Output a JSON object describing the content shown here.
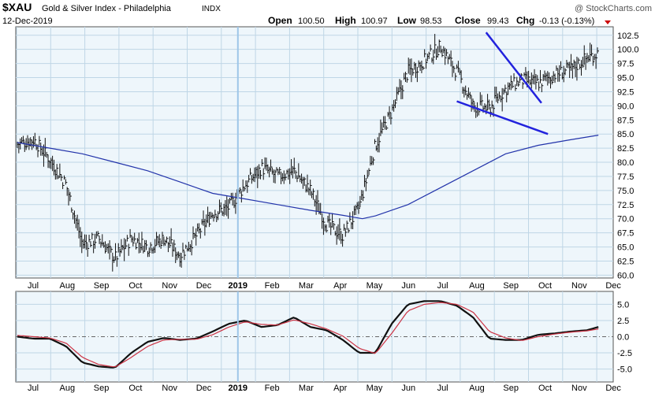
{
  "header": {
    "ticker": "$XAU",
    "name": "Gold & Silver Index - Philadelphia",
    "exchange": "INDX",
    "date": "12-Dec-2019",
    "open_label": "Open",
    "open": "100.50",
    "high_label": "High",
    "high": "100.97",
    "low_label": "Low",
    "low": "98.53",
    "close_label": "Close",
    "close": "99.43",
    "chg_label": "Chg",
    "chg": "-0.13 (-0.13%)",
    "watermark": "@ StockCharts.com"
  },
  "colors": {
    "panel_bg": "#eef6fb",
    "grid": "#bfd6e6",
    "price": "#111111",
    "ma": "#2233aa",
    "trendline": "#2222dd",
    "macd": "#111111",
    "signal": "#cc3344",
    "year_marker": "#9ec6e8",
    "down_arrow": "#cc0000"
  },
  "chart_data": [
    {
      "type": "line",
      "panel": "price",
      "title": "$XAU Gold & Silver Index - Philadelphia INDX",
      "xlabel": "",
      "ylabel": "",
      "x_ticks": [
        "Jul",
        "Aug",
        "Sep",
        "Oct",
        "Nov",
        "Dec",
        "2019",
        "Feb",
        "Mar",
        "Apr",
        "May",
        "Jun",
        "Jul",
        "Aug",
        "Sep",
        "Oct",
        "Nov",
        "Dec"
      ],
      "y_ticks": [
        60.0,
        62.5,
        65.0,
        67.5,
        70.0,
        72.5,
        75.0,
        77.5,
        80.0,
        82.5,
        85.0,
        87.5,
        90.0,
        92.5,
        95.0,
        97.5,
        100.0,
        102.5
      ],
      "ylim": [
        59.5,
        104.0
      ],
      "grid": true,
      "x_range_months": [
        0,
        17.9
      ],
      "series": [
        {
          "style": "ohlc",
          "x": [
            0,
            0.5,
            1,
            1.5,
            2,
            2.5,
            3,
            3.5,
            4,
            4.5,
            5,
            5.5,
            6,
            6.5,
            7,
            7.5,
            8,
            8.5,
            9,
            9.5,
            10,
            10.5,
            11,
            11.5,
            12,
            12.5,
            13,
            13.5,
            14,
            14.5,
            15,
            15.5,
            16,
            16.5,
            17,
            17.5,
            17.85
          ],
          "values": [
            83.2,
            84.0,
            80.5,
            76.0,
            65.5,
            66.5,
            63.0,
            66.5,
            65.0,
            66.5,
            63.5,
            67.0,
            71.0,
            72.0,
            76.0,
            79.0,
            77.5,
            78.5,
            75.0,
            69.0,
            67.0,
            72.0,
            83.0,
            89.0,
            96.0,
            98.0,
            100.5,
            96.0,
            90.0,
            89.5,
            93.0,
            94.5,
            94.0,
            95.5,
            96.5,
            98.5,
            99.43
          ]
        },
        {
          "name": "",
          "x": [
            0,
            1,
            2,
            3,
            4,
            5,
            6,
            7,
            8,
            9,
            10,
            10.6,
            11,
            12,
            13,
            14,
            15,
            16,
            17,
            17.85
          ],
          "values": [
            83.5,
            82.5,
            81.5,
            80.0,
            78.5,
            76.5,
            74.5,
            73.5,
            72.5,
            71.5,
            70.6,
            70.0,
            70.5,
            72.5,
            75.5,
            78.5,
            81.5,
            83.0,
            84.0,
            84.8
          ]
        }
      ],
      "annotations": [
        {
          "type": "trendline",
          "x": [
            14.4,
            16.1
          ],
          "values": [
            103.0,
            90.5
          ]
        },
        {
          "type": "trendline",
          "x": [
            13.5,
            16.3
          ],
          "values": [
            90.8,
            85.0
          ]
        }
      ]
    },
    {
      "type": "line",
      "panel": "macd",
      "x_ticks": [
        "Jul",
        "Aug",
        "Sep",
        "Oct",
        "Nov",
        "Dec",
        "2019",
        "Feb",
        "Mar",
        "Apr",
        "May",
        "Jun",
        "Jul",
        "Aug",
        "Sep",
        "Oct",
        "Nov",
        "Dec"
      ],
      "y_ticks": [
        -5.0,
        -2.5,
        0.0,
        2.5,
        5.0
      ],
      "ylim": [
        -7.0,
        7.0
      ],
      "grid": true,
      "series": [
        {
          "x": [
            0,
            0.5,
            1,
            1.5,
            2,
            2.5,
            3,
            3.5,
            4,
            4.5,
            5,
            5.5,
            6,
            6.5,
            7,
            7.5,
            8,
            8.5,
            9,
            9.5,
            10,
            10.5,
            11,
            11.5,
            12,
            12.5,
            13,
            13.5,
            14,
            14.5,
            15,
            15.5,
            16,
            16.5,
            17,
            17.5,
            17.85
          ],
          "values": [
            0.0,
            -0.3,
            -0.3,
            -1.5,
            -4.0,
            -4.6,
            -4.8,
            -2.5,
            -0.8,
            -0.2,
            -0.5,
            -0.3,
            0.8,
            2.0,
            2.5,
            1.5,
            1.8,
            3.0,
            1.5,
            1.0,
            -0.5,
            -2.5,
            -2.5,
            2.0,
            5.0,
            5.5,
            5.5,
            4.8,
            3.0,
            -0.3,
            -0.5,
            -0.5,
            0.3,
            0.5,
            0.8,
            1.0,
            1.5
          ]
        },
        {
          "x": [
            0,
            0.5,
            1,
            1.5,
            2,
            2.5,
            3,
            3.5,
            4,
            4.5,
            5,
            5.5,
            6,
            6.5,
            7,
            7.5,
            8,
            8.5,
            9,
            9.5,
            10,
            10.5,
            11,
            11.5,
            12,
            12.5,
            13,
            13.5,
            14,
            14.5,
            15,
            15.5,
            16,
            16.5,
            17,
            17.5,
            17.85
          ],
          "values": [
            0.2,
            0.0,
            -0.2,
            -1.0,
            -3.2,
            -4.3,
            -4.7,
            -3.2,
            -1.5,
            -0.5,
            -0.4,
            -0.4,
            0.3,
            1.5,
            2.3,
            1.9,
            1.8,
            2.6,
            2.0,
            1.2,
            0.1,
            -1.8,
            -2.6,
            0.5,
            4.0,
            5.0,
            5.3,
            5.0,
            3.8,
            0.8,
            -0.2,
            -0.6,
            0.0,
            0.4,
            0.7,
            0.9,
            1.2
          ]
        }
      ]
    }
  ]
}
